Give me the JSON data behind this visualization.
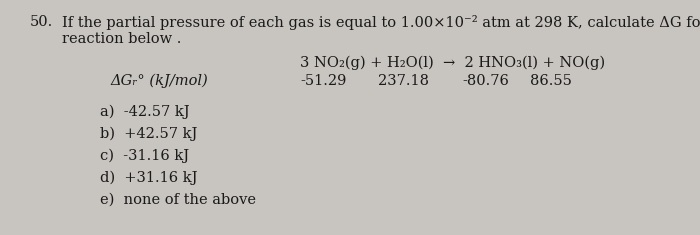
{
  "question_number": "50.",
  "q_line1": "If the partial pressure of each gas is equal to 1.00×10⁻² atm at 298 K, calculate ΔG for the",
  "q_line2": "reaction below .",
  "dgf_label": "ΔGᵣ° (kJ/mol)",
  "reaction": "3 NO₂(g) + H₂O(l)  →  2 HNO₃(l) + NO(g)",
  "val1": "-51.29",
  "val2": "237.18",
  "val3": "-80.76",
  "val4": "86.55",
  "choices": [
    "a)  -42.57 kJ",
    "b)  +42.57 kJ",
    "c)  -31.16 kJ",
    "d)  +31.16 kJ",
    "e)  none of the above"
  ],
  "bg_color": "#c8c5c0",
  "text_color": "#1a1a1a",
  "fs": 10.5
}
